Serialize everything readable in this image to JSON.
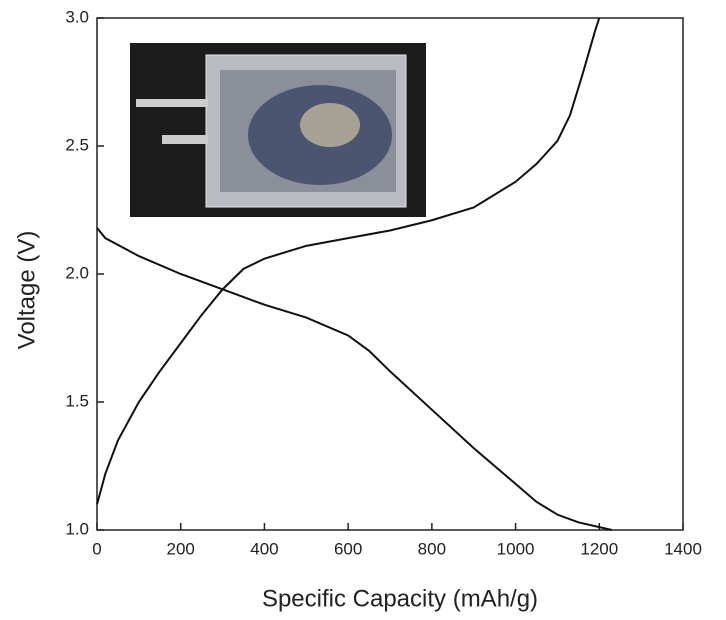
{
  "chart_data": {
    "type": "line",
    "x_label": "Specific Capacity (mAh/g)",
    "y_label": "Voltage (V)",
    "series": [
      {
        "color": "#111111",
        "x": [
          0,
          20,
          100,
          200,
          300,
          400,
          500,
          600,
          650,
          700,
          800,
          900,
          1000,
          1050,
          1100,
          1150,
          1230
        ],
        "values": [
          2.18,
          2.14,
          2.07,
          2.0,
          1.94,
          1.88,
          1.83,
          1.76,
          1.7,
          1.62,
          1.47,
          1.32,
          1.18,
          1.11,
          1.06,
          1.03,
          1.0
        ]
      },
      {
        "color": "#111111",
        "x": [
          0,
          20,
          50,
          100,
          150,
          200,
          250,
          300,
          350,
          400,
          500,
          600,
          700,
          800,
          900,
          1000,
          1050,
          1100,
          1130,
          1160,
          1190,
          1200
        ],
        "values": [
          1.1,
          1.22,
          1.35,
          1.5,
          1.62,
          1.73,
          1.84,
          1.94,
          2.02,
          2.06,
          2.11,
          2.14,
          2.17,
          2.21,
          2.26,
          2.36,
          2.43,
          2.52,
          2.62,
          2.78,
          2.95,
          3.0
        ]
      }
    ],
    "xlim": [
      0,
      1400
    ],
    "xticks": [
      0,
      200,
      400,
      600,
      800,
      1000,
      1200,
      1400
    ],
    "ylim": [
      1,
      3
    ],
    "yticks": [
      {
        "value": 1,
        "label": "1.0"
      },
      {
        "value": 1.5,
        "label": "1.5"
      },
      {
        "value": 2,
        "label": "2.0"
      },
      {
        "value": 2.5,
        "label": "2.5"
      },
      {
        "value": 3,
        "label": "3.0"
      }
    ]
  }
}
